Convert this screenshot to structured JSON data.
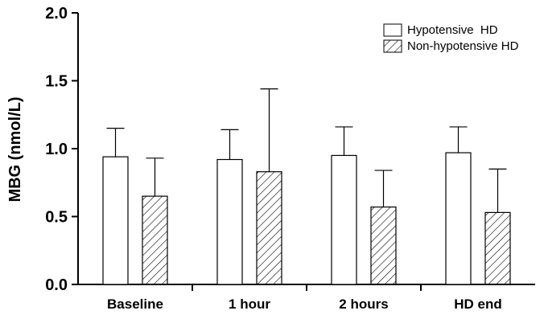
{
  "chart_data": {
    "type": "bar",
    "title": "",
    "xlabel": "",
    "ylabel": "MBG (nmol/L)",
    "ylim": [
      0,
      2.0
    ],
    "yticks": [
      "0.0",
      "0.5",
      "1.0",
      "1.5",
      "2.0"
    ],
    "categories": [
      "Baseline",
      "1 hour",
      "2 hours",
      "HD end"
    ],
    "series": [
      {
        "name": "Hypotensive  HD",
        "fill": "none",
        "values": [
          0.94,
          0.92,
          0.95,
          0.97
        ],
        "error_upper": [
          1.15,
          1.14,
          1.16,
          1.16
        ]
      },
      {
        "name": "Non-hypotensive HD",
        "fill": "hatched",
        "values": [
          0.65,
          0.83,
          0.57,
          0.53
        ],
        "error_upper": [
          0.93,
          1.44,
          0.84,
          0.85
        ]
      }
    ],
    "legend": "top-right",
    "error_bars": "upper",
    "grid": false
  }
}
